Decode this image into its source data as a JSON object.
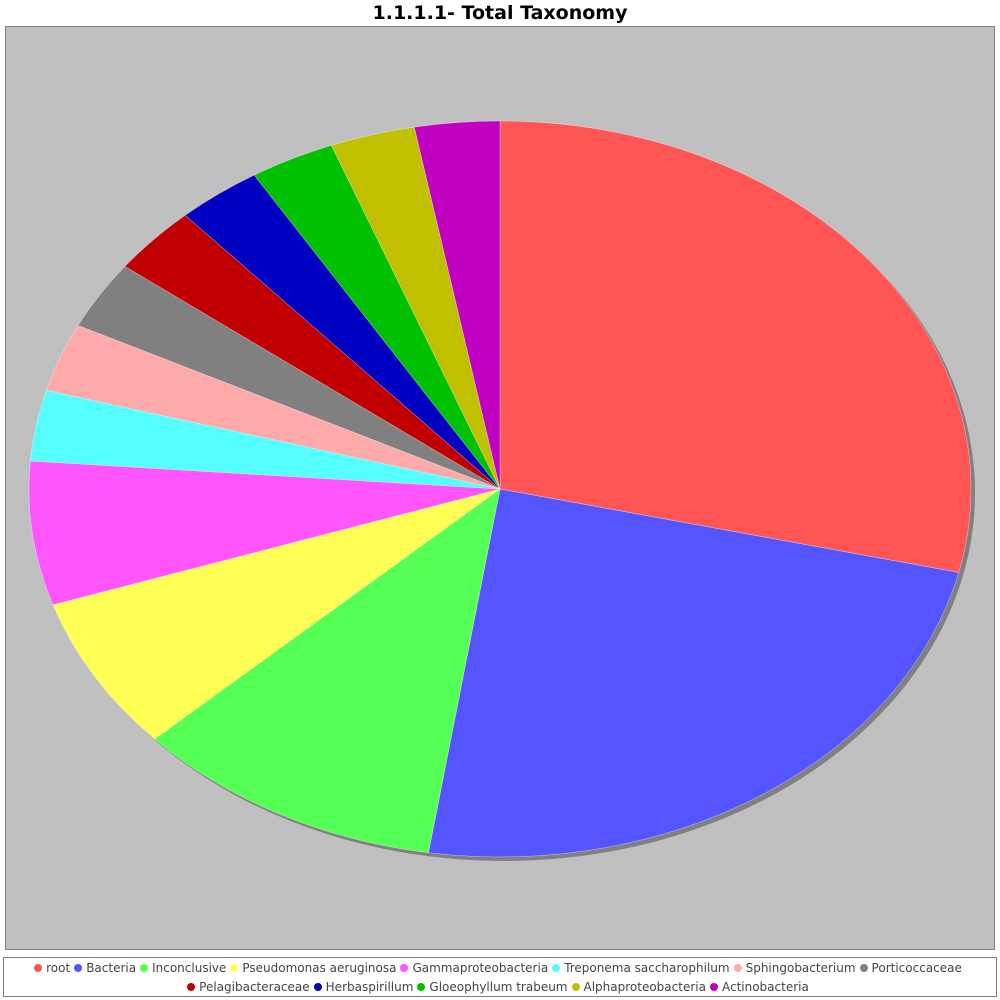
{
  "chart_data": {
    "type": "pie",
    "title": "1.1.1.1- Total Taxonomy",
    "legend_position": "bottom",
    "slices": [
      {
        "label": "root",
        "value": 29.5,
        "color": "#ff5555"
      },
      {
        "label": "Bacteria",
        "value": 24.5,
        "color": "#5555ff"
      },
      {
        "label": "Inconclusive",
        "value": 11.0,
        "color": "#55ff55"
      },
      {
        "label": "Pseudomonas aeruginosa",
        "value": 7.0,
        "color": "#ffff55"
      },
      {
        "label": "Gammaproteobacteria",
        "value": 6.5,
        "color": "#ff55ff"
      },
      {
        "label": "Treponema saccharophilum",
        "value": 3.2,
        "color": "#55ffff"
      },
      {
        "label": "Sphingobacterium",
        "value": 3.1,
        "color": "#ffaaaa"
      },
      {
        "label": "Porticoccaceae",
        "value": 3.1,
        "color": "#808080"
      },
      {
        "label": "Pelagibacteraceae",
        "value": 3.1,
        "color": "#c00000"
      },
      {
        "label": "Herbaspirillum",
        "value": 3.0,
        "color": "#0000c0"
      },
      {
        "label": "Gloeophyllum trabeum",
        "value": 3.0,
        "color": "#00c000"
      },
      {
        "label": "Alphaproteobacteria",
        "value": 3.0,
        "color": "#c0c000"
      },
      {
        "label": "Actinobacteria",
        "value": 3.0,
        "color": "#c000c0"
      }
    ]
  },
  "colors": {
    "plot_background": "#c0c0c0",
    "shadow": "#808080"
  }
}
